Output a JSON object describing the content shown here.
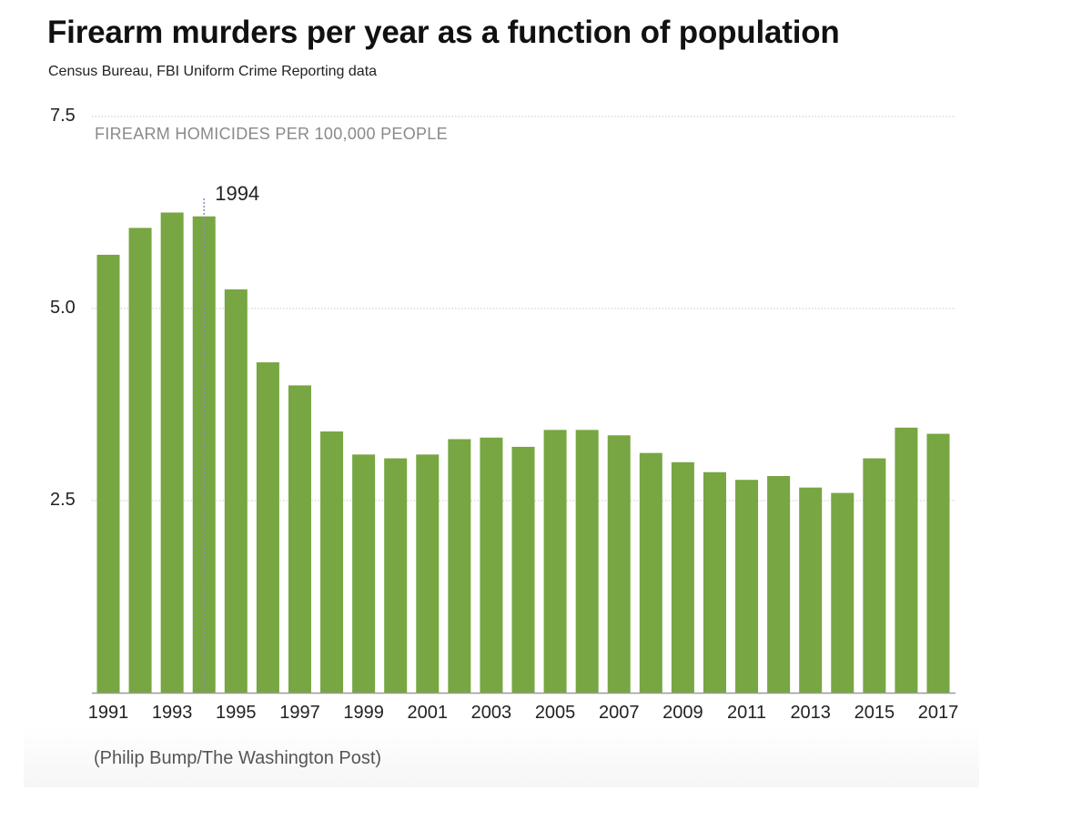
{
  "title": "Firearm murders per year as a function of population",
  "subtitle": "Census Bureau, FBI Uniform Crime Reporting data",
  "credit": "(Philip Bump/The Washington Post)",
  "colors": {
    "bar": "#77a642",
    "grid": "#c8c8c8",
    "axis": "#9a9a9a",
    "annotation_line": "#8a8fb0"
  },
  "chart_data": {
    "type": "bar",
    "title": "Firearm murders per year as a function of population",
    "subtitle": "Census Bureau, FBI Uniform Crime Reporting data",
    "xlabel": "",
    "ylabel": "FIREARM HOMICIDES PER 100,000 PEOPLE",
    "categories": [
      "1991",
      "1992",
      "1993",
      "1994",
      "1995",
      "1996",
      "1997",
      "1998",
      "1999",
      "2000",
      "2001",
      "2002",
      "2003",
      "2004",
      "2005",
      "2006",
      "2007",
      "2008",
      "2009",
      "2010",
      "2011",
      "2012",
      "2013",
      "2014",
      "2015",
      "2016",
      "2017"
    ],
    "x_tick_labels": [
      "1991",
      "1993",
      "1995",
      "1997",
      "1999",
      "2001",
      "2003",
      "2005",
      "2007",
      "2009",
      "2011",
      "2013",
      "2015",
      "2017"
    ],
    "values": [
      5.7,
      6.05,
      6.25,
      6.2,
      5.25,
      4.3,
      4.0,
      3.4,
      3.1,
      3.05,
      3.1,
      3.3,
      3.32,
      3.2,
      3.42,
      3.42,
      3.35,
      3.12,
      3.0,
      2.87,
      2.77,
      2.82,
      2.67,
      2.6,
      3.05,
      3.45,
      3.37
    ],
    "ylim": [
      0,
      7.5
    ],
    "y_ticks": [
      "2.5",
      "5.0",
      "7.5"
    ],
    "y_tick_values": [
      2.5,
      5.0,
      7.5
    ],
    "grid": true,
    "annotations": [
      {
        "category": "1994",
        "text": "1994"
      }
    ]
  }
}
